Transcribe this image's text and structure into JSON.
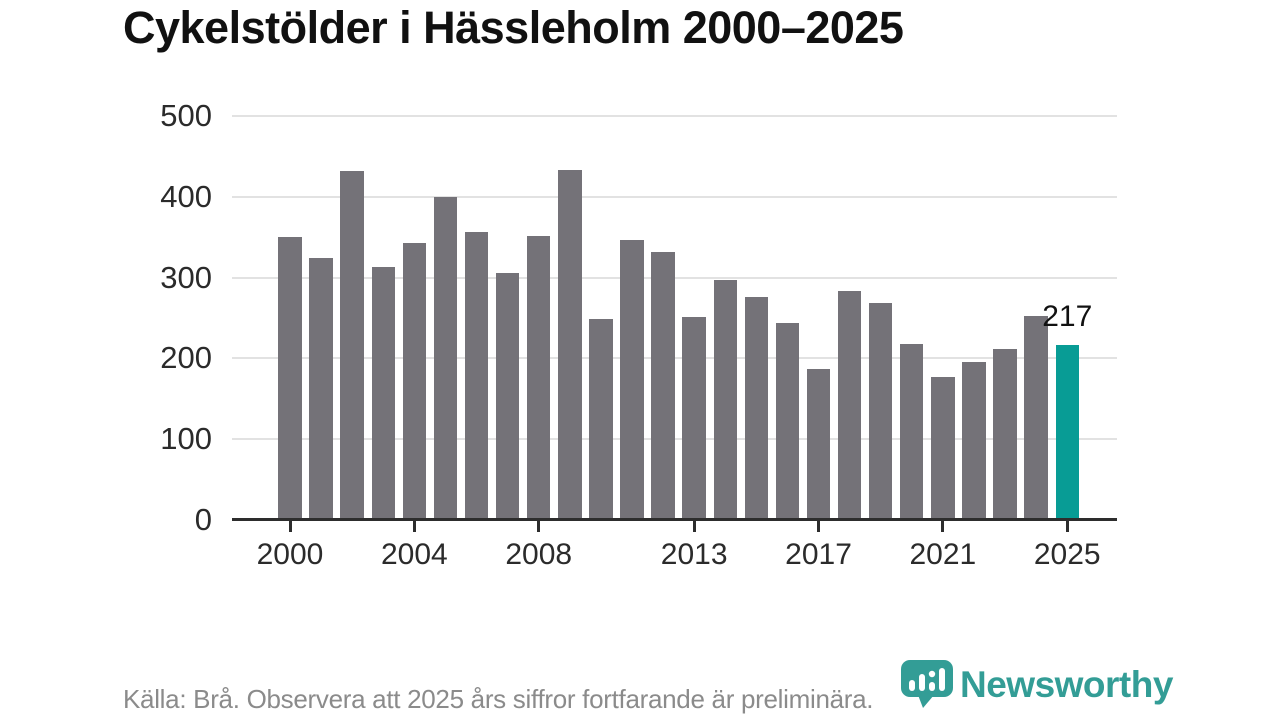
{
  "title": "Cykelstölder i Hässleholm 2000–2025",
  "chart_data": {
    "type": "bar",
    "x": [
      2000,
      2001,
      2002,
      2003,
      2004,
      2005,
      2006,
      2007,
      2008,
      2009,
      2010,
      2011,
      2012,
      2013,
      2014,
      2015,
      2016,
      2017,
      2018,
      2019,
      2020,
      2021,
      2022,
      2023,
      2024,
      2025
    ],
    "values": [
      350,
      324,
      432,
      313,
      343,
      400,
      356,
      306,
      352,
      433,
      249,
      346,
      332,
      251,
      297,
      276,
      244,
      187,
      283,
      269,
      218,
      177,
      195,
      212,
      253,
      217
    ],
    "title": "Cykelstölder i Hässleholm 2000–2025",
    "xlabel": "",
    "ylabel": "",
    "ylim": [
      0,
      500
    ],
    "yticks": [
      0,
      100,
      200,
      300,
      400,
      500
    ],
    "xticks": [
      2000,
      2004,
      2008,
      2013,
      2017,
      2021,
      2025
    ],
    "grid": "horizontal",
    "legend": "none",
    "highlight_year": 2025,
    "annotation": {
      "year": 2025,
      "text": "217"
    }
  },
  "footer": {
    "source_note": "Källa: Brå. Observera att 2025 års siffror fortfarande är preliminära."
  },
  "branding": {
    "logo_text": "Newsworthy",
    "logo_icon": "newsworthy-bubble-chart-icon"
  },
  "colors": {
    "bar": "#747278",
    "highlight": "#089c95",
    "brand": "#339d96",
    "grid": "#e2e2e2",
    "axis": "#2d2d2d",
    "muted": "#8b8b8b"
  }
}
